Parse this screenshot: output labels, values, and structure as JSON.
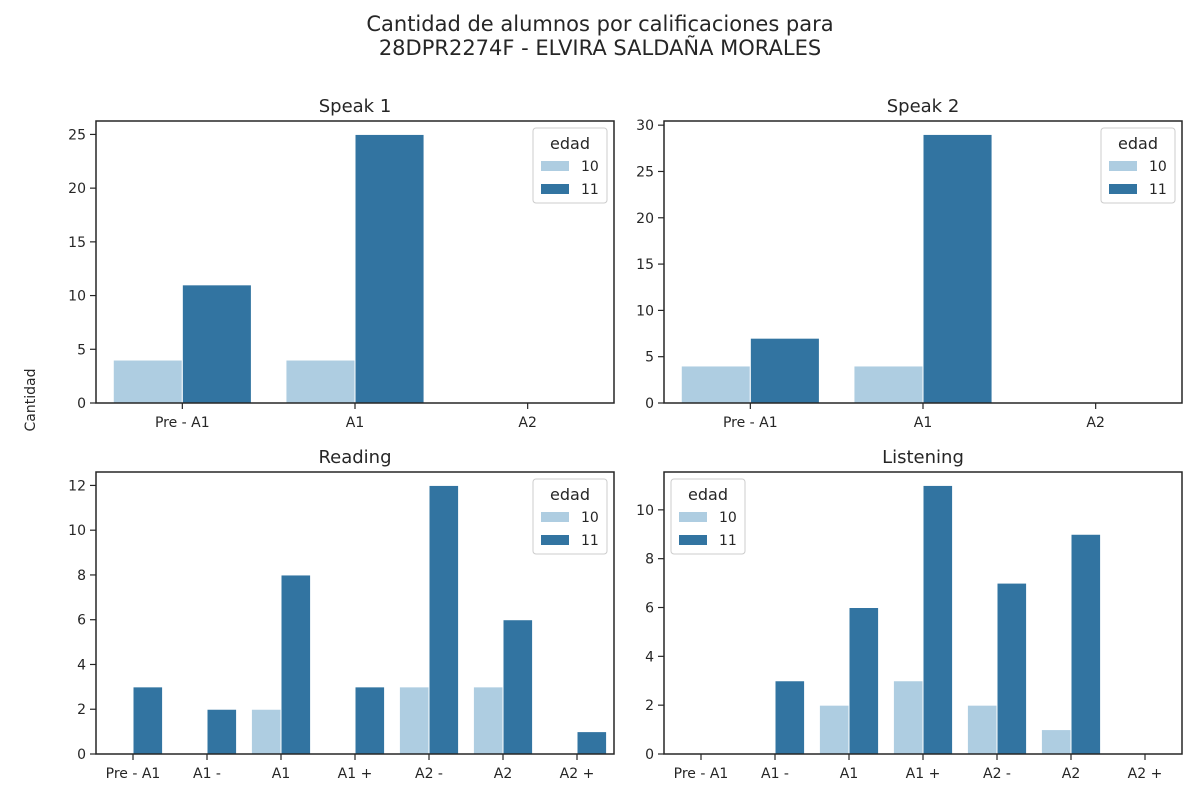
{
  "figure": {
    "title_line1": "Cantidad de alumnos por calificaciones para",
    "title_line2": "28DPR2274F - ELVIRA SALDAÑA MORALES",
    "ylabel": "Cantidad"
  },
  "colors": {
    "edad_10": "#aecde1",
    "edad_11": "#3274a1",
    "axes": "#262626"
  },
  "chart_data": [
    {
      "type": "bar",
      "title": "Speak 1",
      "categories": [
        "Pre - A1",
        "A1",
        "A2"
      ],
      "series": [
        {
          "name": "10",
          "values": [
            4,
            4,
            0
          ]
        },
        {
          "name": "11",
          "values": [
            11,
            25,
            0
          ]
        }
      ],
      "ylim": [
        0,
        26.25
      ],
      "yticks": [
        0,
        5,
        10,
        15,
        20,
        25
      ],
      "legend": {
        "title": "edad",
        "placement": "top-right"
      }
    },
    {
      "type": "bar",
      "title": "Speak 2",
      "categories": [
        "Pre - A1",
        "A1",
        "A2"
      ],
      "series": [
        {
          "name": "10",
          "values": [
            4,
            4,
            0
          ]
        },
        {
          "name": "11",
          "values": [
            7,
            29,
            0
          ]
        }
      ],
      "ylim": [
        0,
        30.45
      ],
      "yticks": [
        0,
        5,
        10,
        15,
        20,
        25,
        30
      ],
      "legend": {
        "title": "edad",
        "placement": "top-right"
      }
    },
    {
      "type": "bar",
      "title": "Reading",
      "categories": [
        "Pre - A1",
        "A1 -",
        "A1",
        "A1 +",
        "A2 -",
        "A2",
        "A2 +"
      ],
      "series": [
        {
          "name": "10",
          "values": [
            0,
            0,
            2,
            0,
            3,
            3,
            0
          ]
        },
        {
          "name": "11",
          "values": [
            3,
            2,
            8,
            3,
            12,
            6,
            1
          ]
        }
      ],
      "ylim": [
        0,
        12.6
      ],
      "yticks": [
        0,
        2,
        4,
        6,
        8,
        10,
        12
      ],
      "legend": {
        "title": "edad",
        "placement": "top-right"
      }
    },
    {
      "type": "bar",
      "title": "Listening",
      "categories": [
        "Pre - A1",
        "A1 -",
        "A1",
        "A1 +",
        "A2 -",
        "A2",
        "A2 +"
      ],
      "series": [
        {
          "name": "10",
          "values": [
            0,
            0,
            2,
            3,
            2,
            1,
            0
          ]
        },
        {
          "name": "11",
          "values": [
            0,
            3,
            6,
            11,
            7,
            9,
            0
          ]
        }
      ],
      "ylim": [
        0,
        11.55
      ],
      "yticks": [
        0,
        2,
        4,
        6,
        8,
        10
      ],
      "legend": {
        "title": "edad",
        "placement": "top-left"
      }
    }
  ]
}
